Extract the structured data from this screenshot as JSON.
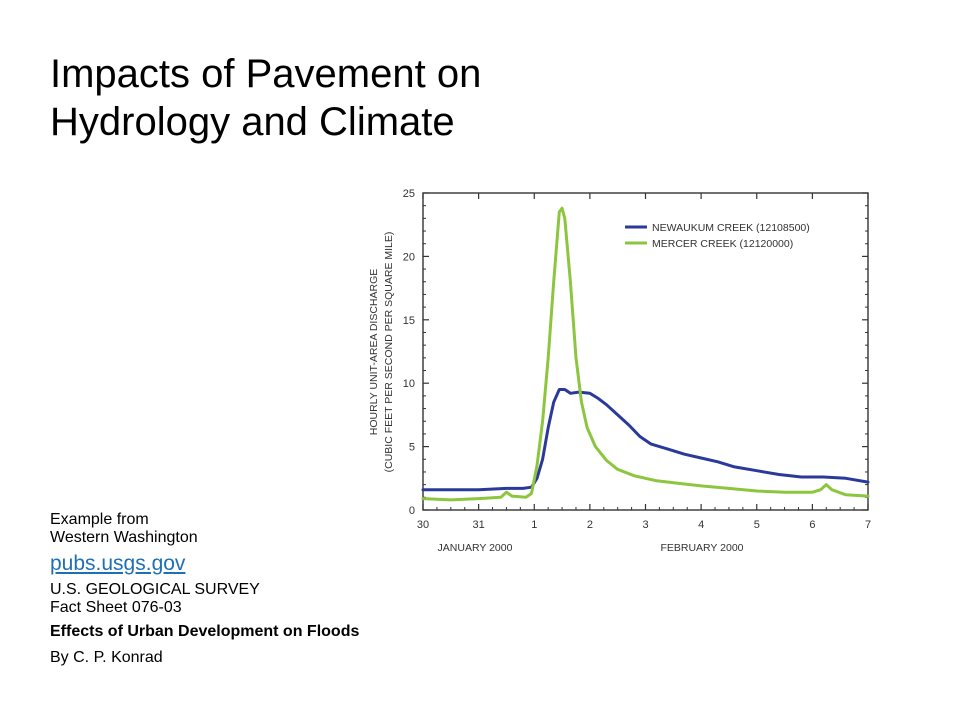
{
  "slide": {
    "title_lines": [
      "Impacts of Pavement on",
      "Hydrology and Climate"
    ],
    "caption": {
      "example_line1": "Example from",
      "example_line2": "Western Washington",
      "link": "pubs.usgs.gov",
      "agency": "U.S. GEOLOGICAL SURVEY",
      "fact_sheet": "Fact Sheet 076-03",
      "publication_title": "Effects of Urban Development on Floods",
      "author": "By C. P. Konrad"
    }
  },
  "chart_data": {
    "type": "line",
    "title": "",
    "ylabel": "HOURLY UNIT-AREA DISCHARGE",
    "ylabel2": "(CUBIC FEET PER SECOND PER SQUARE MILE)",
    "xlabel_left": "JANUARY 2000",
    "xlabel_right": "FEBRUARY 2000",
    "xlim": [
      0,
      8
    ],
    "ylim": [
      0,
      25
    ],
    "x_ticks": [
      {
        "v": 0,
        "label": "30"
      },
      {
        "v": 1,
        "label": "31"
      },
      {
        "v": 2,
        "label": "1"
      },
      {
        "v": 3,
        "label": "2"
      },
      {
        "v": 4,
        "label": "3"
      },
      {
        "v": 5,
        "label": "4"
      },
      {
        "v": 6,
        "label": "5"
      },
      {
        "v": 7,
        "label": "6"
      },
      {
        "v": 8,
        "label": "7"
      }
    ],
    "y_ticks": [
      0,
      5,
      10,
      15,
      20,
      25
    ],
    "grid": false,
    "legend_position": "top-right",
    "series": [
      {
        "name": "NEWAUKUM CREEK (12108500)",
        "color": "#2b3a9a",
        "points": [
          [
            0,
            1.6
          ],
          [
            0.5,
            1.6
          ],
          [
            1,
            1.6
          ],
          [
            1.5,
            1.7
          ],
          [
            1.8,
            1.7
          ],
          [
            1.95,
            1.8
          ],
          [
            2.05,
            2.5
          ],
          [
            2.15,
            4
          ],
          [
            2.25,
            6.5
          ],
          [
            2.35,
            8.5
          ],
          [
            2.45,
            9.5
          ],
          [
            2.55,
            9.5
          ],
          [
            2.65,
            9.2
          ],
          [
            2.8,
            9.3
          ],
          [
            3.0,
            9.2
          ],
          [
            3.15,
            8.8
          ],
          [
            3.3,
            8.3
          ],
          [
            3.5,
            7.5
          ],
          [
            3.7,
            6.7
          ],
          [
            3.9,
            5.8
          ],
          [
            4.1,
            5.2
          ],
          [
            4.4,
            4.8
          ],
          [
            4.7,
            4.4
          ],
          [
            5.0,
            4.1
          ],
          [
            5.3,
            3.8
          ],
          [
            5.6,
            3.4
          ],
          [
            6.0,
            3.1
          ],
          [
            6.4,
            2.8
          ],
          [
            6.8,
            2.6
          ],
          [
            7.2,
            2.6
          ],
          [
            7.6,
            2.5
          ],
          [
            8.0,
            2.2
          ]
        ]
      },
      {
        "name": "MERCER CREEK (12120000)",
        "color": "#8cc63f",
        "points": [
          [
            0,
            0.9
          ],
          [
            0.5,
            0.8
          ],
          [
            1,
            0.9
          ],
          [
            1.4,
            1.0
          ],
          [
            1.5,
            1.4
          ],
          [
            1.6,
            1.1
          ],
          [
            1.85,
            1.0
          ],
          [
            1.95,
            1.3
          ],
          [
            2.05,
            3.5
          ],
          [
            2.15,
            7
          ],
          [
            2.25,
            12
          ],
          [
            2.35,
            18
          ],
          [
            2.45,
            23.5
          ],
          [
            2.5,
            23.8
          ],
          [
            2.55,
            23
          ],
          [
            2.65,
            18
          ],
          [
            2.75,
            12
          ],
          [
            2.85,
            8.5
          ],
          [
            2.95,
            6.5
          ],
          [
            3.1,
            5
          ],
          [
            3.3,
            3.9
          ],
          [
            3.5,
            3.2
          ],
          [
            3.8,
            2.7
          ],
          [
            4.2,
            2.3
          ],
          [
            4.6,
            2.1
          ],
          [
            5.0,
            1.9
          ],
          [
            5.5,
            1.7
          ],
          [
            6.0,
            1.5
          ],
          [
            6.5,
            1.4
          ],
          [
            7.0,
            1.4
          ],
          [
            7.15,
            1.6
          ],
          [
            7.25,
            2.0
          ],
          [
            7.35,
            1.6
          ],
          [
            7.6,
            1.2
          ],
          [
            8.0,
            1.1
          ]
        ]
      }
    ]
  }
}
